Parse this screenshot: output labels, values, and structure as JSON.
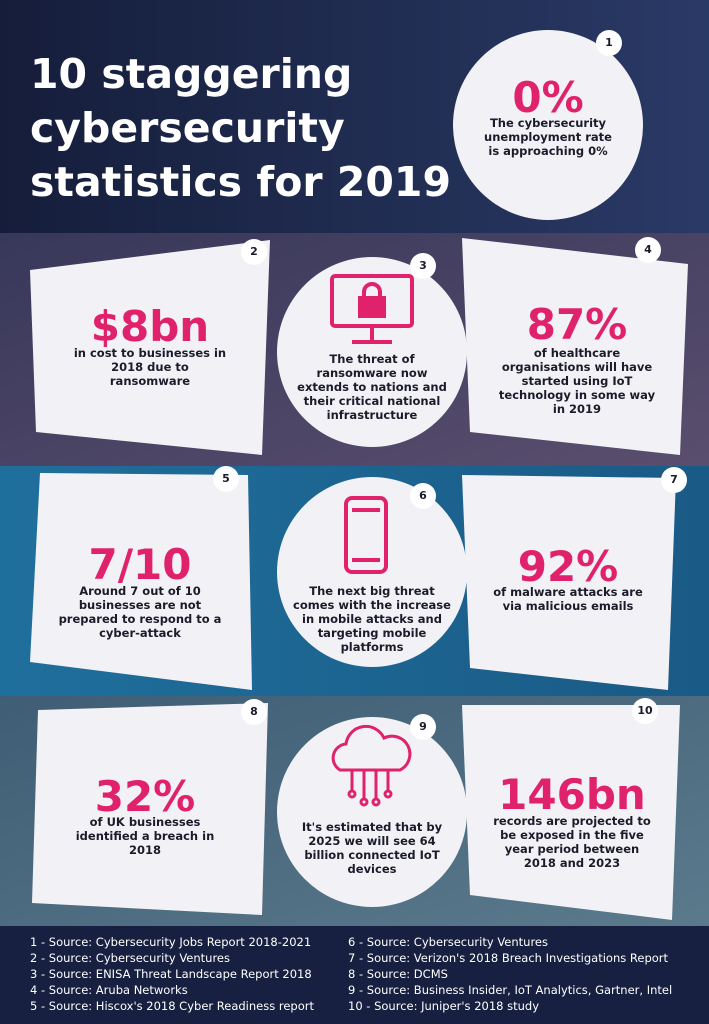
{
  "header": {
    "title_lines": [
      "10 staggering",
      "cybersecurity",
      "statistics for 2019"
    ]
  },
  "stats": [
    {
      "badge": "1",
      "value": "0%",
      "text": "The cybersecurity unemployment rate is approaching 0%"
    },
    {
      "badge": "2",
      "value": "$8bn",
      "text": "in cost to businesses in 2018 due to ransomware"
    },
    {
      "badge": "3",
      "text": "The threat of ransomware now extends to nations and their critical national infrastructure"
    },
    {
      "badge": "4",
      "value": "87%",
      "text": "of healthcare organisations will have started using IoT technology in some way in 2019"
    },
    {
      "badge": "5",
      "value": "7/10",
      "text": "Around 7 out of 10 businesses are not prepared to respond to a cyber-attack"
    },
    {
      "badge": "6",
      "text": "The next big threat comes with the increase in mobile attacks and targeting mobile platforms"
    },
    {
      "badge": "7",
      "value": "92%",
      "text": "of malware attacks are via malicious emails"
    },
    {
      "badge": "8",
      "value": "32%",
      "text": "of UK businesses identified a breach in 2018"
    },
    {
      "badge": "9",
      "text": "It's estimated that by 2025 we will see 64 billion connected IoT devices"
    },
    {
      "badge": "10",
      "value": "146bn",
      "text": "records are projected to be exposed in the five year period between 2018 and 2023"
    }
  ],
  "sources": [
    "1 - Source: Cybersecurity Jobs Report 2018-2021",
    "2 - Source: Cybersecurity Ventures",
    "3 - Source: ENISA Threat Landscape Report 2018",
    "4 - Source: Aruba Networks",
    "5 - Source: Hiscox's 2018 Cyber Readiness report",
    "6 - Source: Cybersecurity Ventures",
    "7 - Source: Verizon's 2018 Breach Investigations Report",
    "8 - Source: DCMS",
    "9 - Source: Business Insider, IoT Analytics, Gartner, Intel",
    "10 - Source: Juniper's 2018 study"
  ]
}
